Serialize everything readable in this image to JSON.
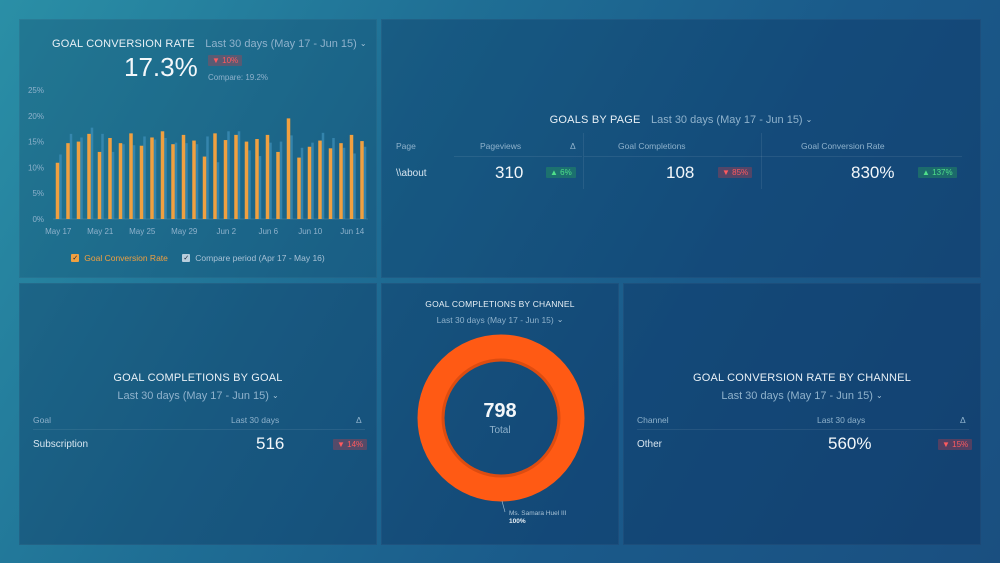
{
  "colors": {
    "accent_orange": "#f0a040",
    "compare_blue": "#3d8fb8",
    "donut_orange": "#ff5a14",
    "badge_down": "#ff5a5f",
    "badge_up": "#4fe08a"
  },
  "goal_conversion_rate": {
    "title": "GOAL CONVERSION RATE",
    "range": "Last 30 days (May 17 - Jun 15)",
    "value": "17.3%",
    "delta": "▼ 10%",
    "delta_direction": "down",
    "compare": "Compare: 19.2%",
    "legend": {
      "primary": "Goal Conversion Rate",
      "compare": "Compare period (Apr 17 - May 16)"
    }
  },
  "chart_data": {
    "type": "bar",
    "title": "GOAL CONVERSION RATE",
    "xlabel": "",
    "ylabel": "",
    "ylim": [
      0,
      25
    ],
    "yticks": [
      "0%",
      "5%",
      "10%",
      "15%",
      "20%",
      "25%"
    ],
    "ytick_values": [
      0,
      5,
      10,
      15,
      20,
      25
    ],
    "xtick_labels": [
      "May 17",
      "May 21",
      "May 25",
      "May 29",
      "Jun 2",
      "Jun 6",
      "Jun 10",
      "Jun 14"
    ],
    "xtick_indices": [
      0,
      4,
      8,
      12,
      16,
      20,
      24,
      28
    ],
    "categories": [
      "May 17",
      "May 18",
      "May 19",
      "May 20",
      "May 21",
      "May 22",
      "May 23",
      "May 24",
      "May 25",
      "May 26",
      "May 27",
      "May 28",
      "May 29",
      "May 30",
      "May 31",
      "Jun 1",
      "Jun 2",
      "Jun 3",
      "Jun 4",
      "Jun 5",
      "Jun 6",
      "Jun 7",
      "Jun 8",
      "Jun 9",
      "Jun 10",
      "Jun 11",
      "Jun 12",
      "Jun 13",
      "Jun 14",
      "Jun 15"
    ],
    "series": [
      {
        "name": "Goal Conversion Rate",
        "values": [
          10.9,
          14.7,
          15.0,
          16.5,
          13.0,
          15.7,
          14.7,
          16.6,
          14.2,
          15.8,
          17.0,
          14.5,
          16.3,
          15.2,
          12.1,
          16.6,
          15.3,
          16.3,
          15.0,
          15.5,
          16.3,
          13.0,
          19.5,
          11.9,
          14.0,
          15.2,
          13.7,
          14.7,
          16.3,
          15.1
        ]
      },
      {
        "name": "Compare period (Apr 17 - May 16)",
        "values": [
          12.5,
          16.5,
          15.8,
          17.7,
          16.5,
          13.0,
          14.5,
          14.3,
          16.0,
          15.4,
          15.7,
          14.8,
          14.7,
          14.5,
          16.0,
          11.0,
          17.0,
          17.0,
          13.3,
          12.2,
          14.8,
          15.0,
          16.2,
          13.8,
          14.8,
          16.7,
          15.7,
          13.8,
          12.7,
          14.0
        ]
      }
    ],
    "grid": false,
    "legend_position": "bottom"
  },
  "goals_by_page": {
    "title": "GOALS BY PAGE",
    "range": "Last 30 days (May 17 - Jun 15)",
    "columns": [
      "Page",
      "Pageviews",
      "Δ",
      "Goal Completions",
      "Goal Conversion Rate"
    ],
    "rows": [
      {
        "page": "\\\\about",
        "pageviews": "310",
        "pageviews_delta": "▲ 6%",
        "completions": "108",
        "completions_delta": "▼ 85%",
        "rate": "830%",
        "rate_delta": "▲ 137%"
      }
    ]
  },
  "goal_completions_by_goal": {
    "title": "GOAL COMPLETIONS BY GOAL",
    "range": "Last 30 days (May 17 - Jun 15)",
    "columns": [
      "Goal",
      "Last 30 days",
      "Δ"
    ],
    "rows": [
      {
        "label": "Subscription",
        "value": "516",
        "delta": "▼ 14%"
      }
    ]
  },
  "goal_completions_by_channel": {
    "title": "GOAL COMPLETIONS BY CHANNEL",
    "range": "Last 30 days (May 17 - Jun 15)",
    "total": "798",
    "total_label": "Total",
    "slices": [
      {
        "label": "Ms. Samara Huel III",
        "percent_label": "100%",
        "value": 100
      }
    ]
  },
  "goal_conversion_rate_by_channel": {
    "title": "GOAL CONVERSION RATE BY CHANNEL",
    "range": "Last 30 days (May 17 - Jun 15)",
    "columns": [
      "Channel",
      "Last 30 days",
      "Δ"
    ],
    "rows": [
      {
        "label": "Other",
        "value": "560%",
        "delta": "▼ 15%"
      }
    ]
  }
}
